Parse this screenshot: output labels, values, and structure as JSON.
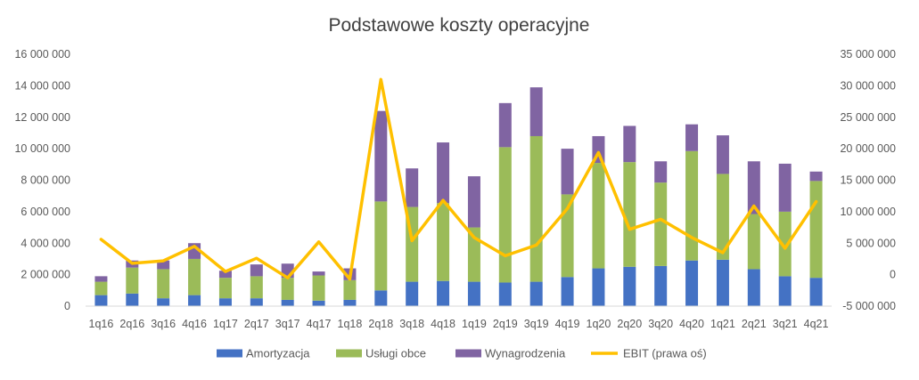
{
  "chart_data": {
    "type": "bar",
    "title": "Podstawowe koszty operacyjne",
    "categories": [
      "1q16",
      "2q16",
      "3q16",
      "4q16",
      "1q17",
      "2q17",
      "3q17",
      "4q17",
      "1q18",
      "2q18",
      "3q18",
      "4q18",
      "1q19",
      "2q19",
      "3q19",
      "4q19",
      "1q20",
      "2q20",
      "3q20",
      "4q20",
      "1q21",
      "2q21",
      "3q21",
      "4q21"
    ],
    "stacked": true,
    "series": [
      {
        "name": "Amortyzacja",
        "axis": "left",
        "color": "#4472C4",
        "values": [
          700000,
          800000,
          500000,
          700000,
          500000,
          500000,
          400000,
          350000,
          400000,
          1000000,
          1550000,
          1600000,
          1550000,
          1500000,
          1550000,
          1850000,
          2400000,
          2500000,
          2550000,
          2900000,
          2950000,
          2350000,
          1900000,
          1800000
        ]
      },
      {
        "name": "Usługi obce",
        "axis": "left",
        "color": "#9BBB59",
        "values": [
          850000,
          1650000,
          1850000,
          2300000,
          1300000,
          1400000,
          1400000,
          1600000,
          1250000,
          5650000,
          4750000,
          4950000,
          3450000,
          8600000,
          9250000,
          5250000,
          6700000,
          6650000,
          5300000,
          6950000,
          5450000,
          3500000,
          4100000,
          6150000
        ]
      },
      {
        "name": "Wynagrodzenia",
        "axis": "left",
        "color": "#8064A2",
        "values": [
          350000,
          450000,
          550000,
          1000000,
          450000,
          750000,
          900000,
          250000,
          750000,
          5750000,
          2450000,
          3850000,
          3250000,
          2800000,
          3100000,
          2900000,
          1700000,
          2300000,
          1350000,
          1700000,
          2450000,
          3350000,
          3050000,
          600000
        ]
      },
      {
        "name": "EBIT (prawa oś)",
        "axis": "right",
        "type": "line",
        "color": "#FFC000",
        "values": [
          5600000,
          1800000,
          2200000,
          4500000,
          500000,
          2600000,
          -500000,
          5200000,
          -700000,
          31000000,
          5400000,
          11800000,
          5900000,
          3000000,
          4700000,
          10500000,
          19400000,
          7200000,
          8800000,
          5900000,
          3500000,
          10900000,
          4200000,
          11600000
        ]
      }
    ],
    "y_left": {
      "ylim": [
        0,
        16000000
      ],
      "step": 2000000,
      "tick_labels": [
        "0",
        "2 000 000",
        "4 000 000",
        "6 000 000",
        "8 000 000",
        "10 000 000",
        "12 000 000",
        "14 000 000",
        "16 000 000"
      ]
    },
    "y_right": {
      "ylim": [
        -5000000,
        35000000
      ],
      "step": 5000000,
      "tick_labels": [
        "-5 000 000",
        "0",
        "5 000 000",
        "10 000 000",
        "15 000 000",
        "20 000 000",
        "25 000 000",
        "30 000 000",
        "35 000 000"
      ]
    },
    "grid": false,
    "legend": "bottom"
  }
}
